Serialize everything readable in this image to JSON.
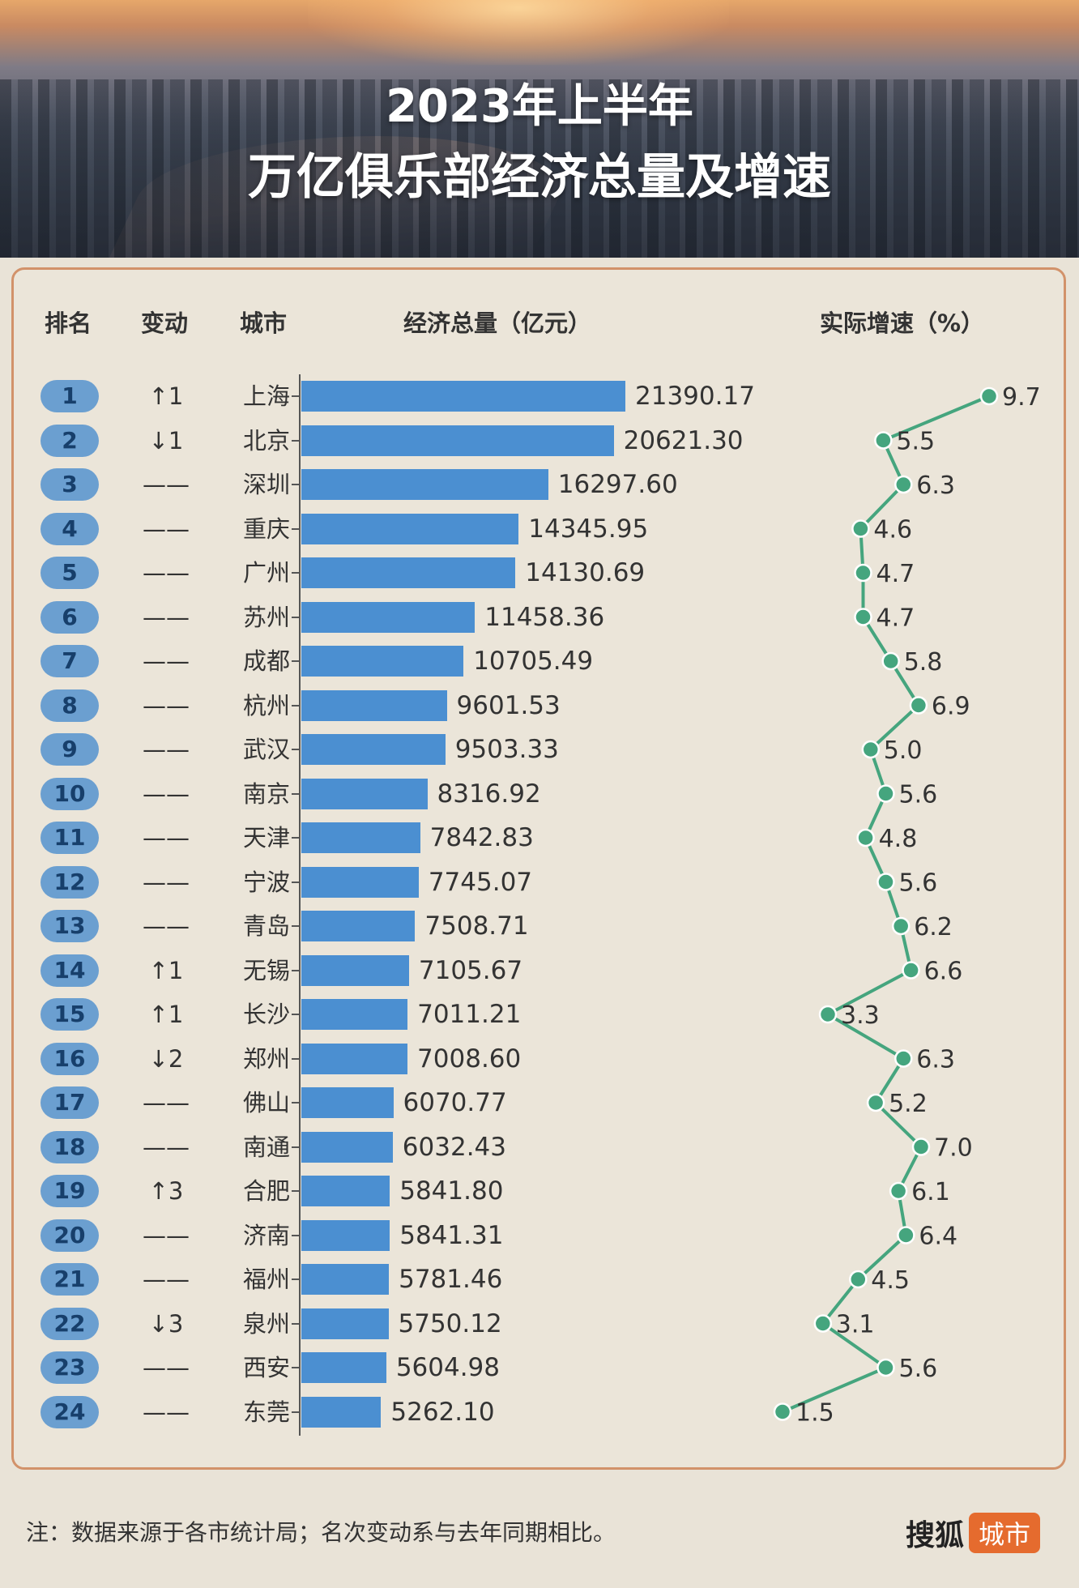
{
  "header": {
    "title_line1": "2023年上半年",
    "title_line2": "万亿俱乐部经济总量及增速"
  },
  "columns": {
    "rank": "排名",
    "change": "变动",
    "city": "城市",
    "gdp": "经济总量（亿元）",
    "growth": "实际增速（%）"
  },
  "colors": {
    "bar": "#4b8fd1",
    "rank_pill": "#6b9fd0",
    "growth_line": "#45a57e",
    "panel_border": "#d2926a",
    "logo_accent": "#e56b2e"
  },
  "chart_data": {
    "type": "bar",
    "orientation": "horizontal",
    "categories": [
      "上海",
      "北京",
      "深圳",
      "重庆",
      "广州",
      "苏州",
      "成都",
      "杭州",
      "武汉",
      "南京",
      "天津",
      "宁波",
      "青岛",
      "无锡",
      "长沙",
      "郑州",
      "佛山",
      "南通",
      "合肥",
      "济南",
      "福州",
      "泉州",
      "西安",
      "东莞"
    ],
    "ranks": [
      "1",
      "2",
      "3",
      "4",
      "5",
      "6",
      "7",
      "8",
      "9",
      "10",
      "11",
      "12",
      "13",
      "14",
      "15",
      "16",
      "17",
      "18",
      "19",
      "20",
      "21",
      "22",
      "23",
      "24"
    ],
    "rank_changes": [
      "↑1",
      "↓1",
      "——",
      "——",
      "——",
      "——",
      "——",
      "——",
      "——",
      "——",
      "——",
      "——",
      "——",
      "↑1",
      "↑1",
      "↓2",
      "——",
      "——",
      "↑3",
      "——",
      "——",
      "↓3",
      "——",
      "——"
    ],
    "gdp_labels": [
      "21390.17",
      "20621.30",
      "16297.60",
      "14345.95",
      "14130.69",
      "11458.36",
      "10705.49",
      "9601.53",
      "9503.33",
      "8316.92",
      "7842.83",
      "7745.07",
      "7508.71",
      "7105.67",
      "7011.21",
      "7008.60",
      "6070.77",
      "6032.43",
      "5841.80",
      "5841.31",
      "5781.46",
      "5750.12",
      "5604.98",
      "5262.10"
    ],
    "series": [
      {
        "name": "经济总量（亿元）",
        "values": [
          21390.17,
          20621.3,
          16297.6,
          14345.95,
          14130.69,
          11458.36,
          10705.49,
          9601.53,
          9503.33,
          8316.92,
          7842.83,
          7745.07,
          7508.71,
          7105.67,
          7011.21,
          7008.6,
          6070.77,
          6032.43,
          5841.8,
          5841.31,
          5781.46,
          5750.12,
          5604.98,
          5262.1
        ]
      },
      {
        "name": "实际增速（%）",
        "type": "line",
        "values": [
          9.7,
          5.5,
          6.3,
          4.6,
          4.7,
          4.7,
          5.8,
          6.9,
          5.0,
          5.6,
          4.8,
          5.6,
          6.2,
          6.6,
          3.3,
          6.3,
          5.2,
          7.0,
          6.1,
          6.4,
          4.5,
          3.1,
          5.6,
          1.5
        ],
        "labels": [
          "9.7",
          "5.5",
          "6.3",
          "4.6",
          "4.7",
          "4.7",
          "5.8",
          "6.9",
          "5.0",
          "5.6",
          "4.8",
          "5.6",
          "6.2",
          "6.6",
          "3.3",
          "6.3",
          "5.2",
          "7.0",
          "6.1",
          "6.4",
          "4.5",
          "3.1",
          "5.6",
          "1.5"
        ]
      }
    ]
  },
  "footer": {
    "note": "注：数据来源于各市统计局；名次变动系与去年同期相比。",
    "logo_main": "搜狐",
    "logo_sub": "城市"
  }
}
